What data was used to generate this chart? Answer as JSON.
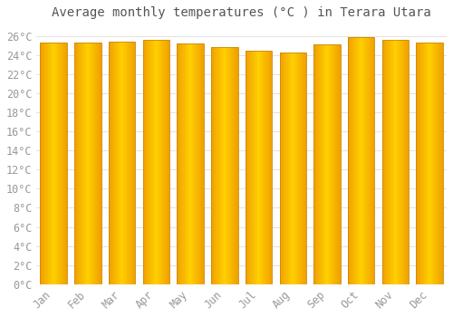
{
  "title": "Average monthly temperatures (°C ) in Terara Utara",
  "months": [
    "Jan",
    "Feb",
    "Mar",
    "Apr",
    "May",
    "Jun",
    "Jul",
    "Aug",
    "Sep",
    "Oct",
    "Nov",
    "Dec"
  ],
  "temperatures": [
    25.3,
    25.3,
    25.4,
    25.6,
    25.2,
    24.8,
    24.4,
    24.3,
    25.1,
    25.9,
    25.6,
    25.3
  ],
  "bar_color_center": "#FFD000",
  "bar_color_edge": "#F0A000",
  "bar_border_color": "#CC8800",
  "background_color": "#FFFFFF",
  "grid_color": "#DDDDDD",
  "ylim": [
    0,
    27
  ],
  "ytick_step": 2,
  "title_fontsize": 10,
  "tick_fontsize": 8.5
}
